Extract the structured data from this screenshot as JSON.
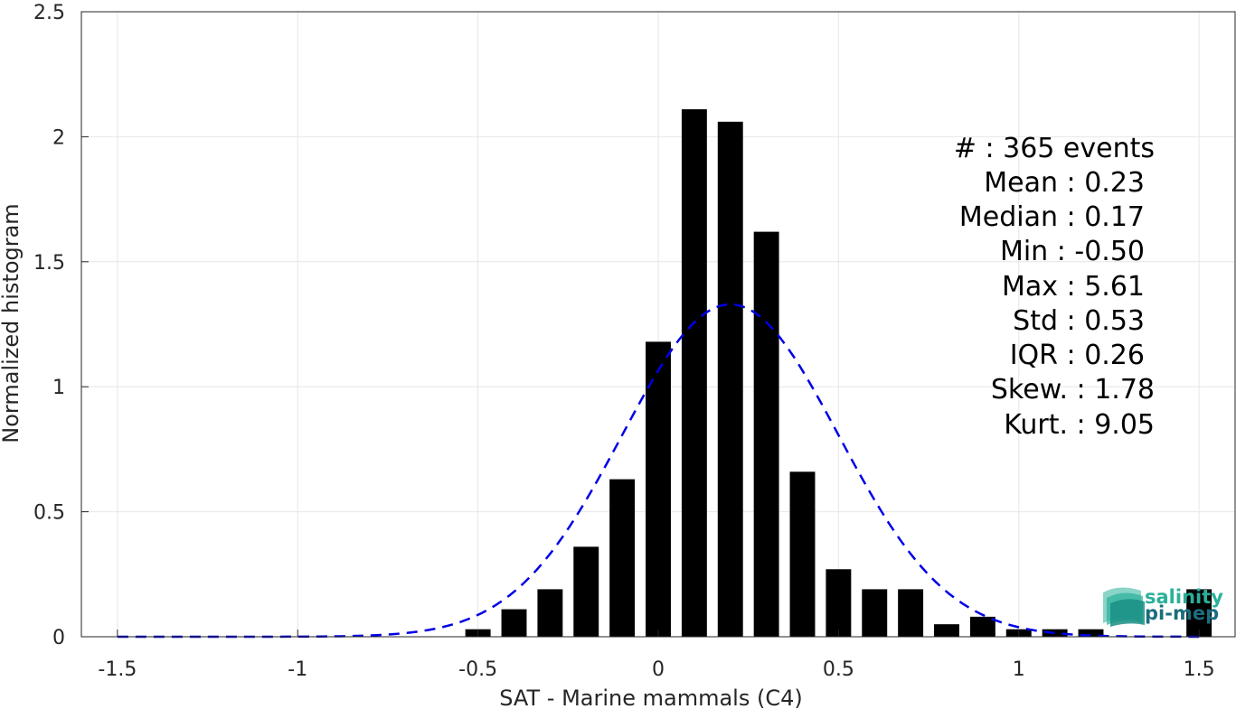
{
  "chart_data": {
    "type": "bar",
    "xlabel": "SAT - Marine mammals (C4)",
    "ylabel": "Normalized histogram",
    "xlim": [
      -1.6,
      1.6
    ],
    "ylim": [
      0,
      2.5
    ],
    "xticks": [
      -1.5,
      -1,
      -0.5,
      0,
      0.5,
      1,
      1.5
    ],
    "xtick_labels": [
      "-1.5",
      "-1",
      "-0.5",
      "0",
      "0.5",
      "1",
      "1.5"
    ],
    "yticks": [
      0,
      0.5,
      1,
      1.5,
      2,
      2.5
    ],
    "ytick_labels": [
      "0",
      "0.5",
      "1",
      "1.5",
      "2",
      "2.5"
    ],
    "grid": true,
    "bar_width": 0.07,
    "bar_color": "#000000",
    "bars": [
      {
        "x": -0.5,
        "y": 0.03
      },
      {
        "x": -0.4,
        "y": 0.11
      },
      {
        "x": -0.3,
        "y": 0.19
      },
      {
        "x": -0.2,
        "y": 0.36
      },
      {
        "x": -0.1,
        "y": 0.63
      },
      {
        "x": 0.0,
        "y": 1.18
      },
      {
        "x": 0.1,
        "y": 2.11
      },
      {
        "x": 0.2,
        "y": 2.06
      },
      {
        "x": 0.3,
        "y": 1.62
      },
      {
        "x": 0.4,
        "y": 0.66
      },
      {
        "x": 0.5,
        "y": 0.27
      },
      {
        "x": 0.6,
        "y": 0.19
      },
      {
        "x": 0.7,
        "y": 0.19
      },
      {
        "x": 0.8,
        "y": 0.05
      },
      {
        "x": 0.9,
        "y": 0.08
      },
      {
        "x": 1.0,
        "y": 0.03
      },
      {
        "x": 1.1,
        "y": 0.03
      },
      {
        "x": 1.2,
        "y": 0.03
      },
      {
        "x": 1.5,
        "y": 0.19
      }
    ],
    "fit_curve": {
      "style": "dashed",
      "color": "#0000e6",
      "mean": 0.2,
      "std": 0.3,
      "x_range": [
        -1.5,
        1.5
      ]
    },
    "stats_lines": [
      "#  : 365 events",
      "Mean : 0.23",
      "Median : 0.17",
      "Min : -0.50",
      "Max : 5.61",
      "Std : 0.53",
      "IQR : 0.26",
      "Skew. : 1.78",
      "Kurt. : 9.05"
    ]
  },
  "logo": {
    "line1": "salinity",
    "line2": "pi-mep",
    "color_light": "#2ab09a",
    "color_dark": "#1a6e7e"
  }
}
